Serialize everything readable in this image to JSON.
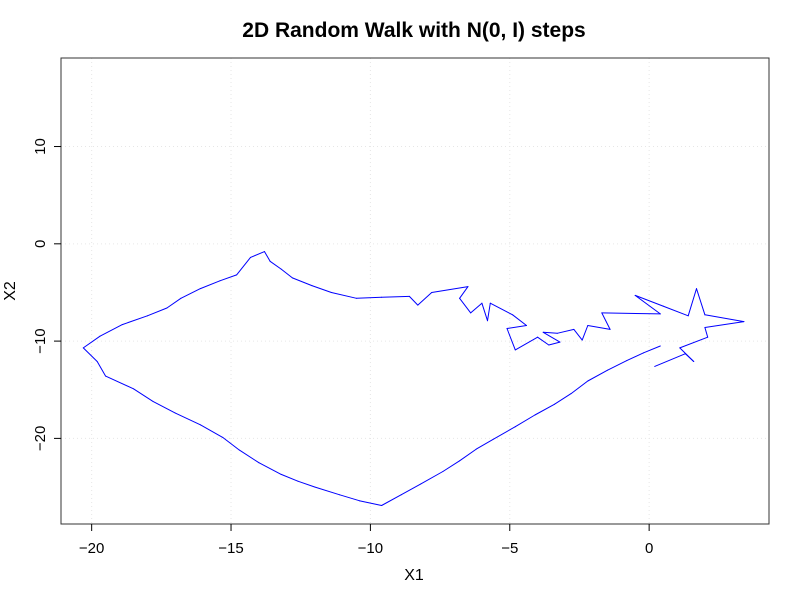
{
  "chart_data": {
    "type": "line",
    "title": "2D Random Walk with N(0, I) steps",
    "xlabel": "X1",
    "ylabel": "X2",
    "xlim": [
      -21.1,
      4.3
    ],
    "ylim": [
      -28.8,
      19.1
    ],
    "xticks": [
      -20,
      -15,
      -10,
      -5,
      0
    ],
    "yticks": [
      -20,
      -10,
      0,
      10
    ],
    "grid": true,
    "colors": {
      "line": "#0000ff",
      "grid": "#e6e6e6",
      "frame": "#333333"
    },
    "series": [
      {
        "values_xy": [
          [
            0.2,
            -12.6
          ],
          [
            1.3,
            -11.3
          ],
          [
            1.6,
            -12.1
          ],
          [
            1.1,
            -10.7
          ],
          [
            2.1,
            -9.6
          ],
          [
            2.0,
            -8.6
          ],
          [
            3.4,
            -8.0
          ],
          [
            2.0,
            -7.3
          ],
          [
            1.7,
            -4.6
          ],
          [
            1.4,
            -7.4
          ],
          [
            0.5,
            -6.4
          ],
          [
            -0.5,
            -5.3
          ],
          [
            0.4,
            -7.2
          ],
          [
            -1.7,
            -7.1
          ],
          [
            -1.4,
            -8.8
          ],
          [
            -2.2,
            -8.4
          ],
          [
            -2.4,
            -9.9
          ],
          [
            -2.7,
            -8.8
          ],
          [
            -3.3,
            -9.2
          ],
          [
            -3.8,
            -9.1
          ],
          [
            -3.2,
            -10.1
          ],
          [
            -3.6,
            -10.4
          ],
          [
            -4.0,
            -9.6
          ],
          [
            -4.8,
            -10.9
          ],
          [
            -5.1,
            -8.7
          ],
          [
            -4.4,
            -8.4
          ],
          [
            -4.9,
            -7.3
          ],
          [
            -5.7,
            -6.1
          ],
          [
            -5.8,
            -7.9
          ],
          [
            -6.0,
            -6.1
          ],
          [
            -6.4,
            -7.1
          ],
          [
            -6.8,
            -5.6
          ],
          [
            -6.5,
            -4.4
          ],
          [
            -7.8,
            -5.0
          ],
          [
            -8.3,
            -6.3
          ],
          [
            -8.6,
            -5.4
          ],
          [
            -9.6,
            -5.5
          ],
          [
            -10.5,
            -5.6
          ],
          [
            -11.4,
            -5.0
          ],
          [
            -12.1,
            -4.3
          ],
          [
            -12.8,
            -3.5
          ],
          [
            -13.2,
            -2.6
          ],
          [
            -13.6,
            -1.8
          ],
          [
            -13.8,
            -0.8
          ],
          [
            -14.3,
            -1.4
          ],
          [
            -14.8,
            -3.2
          ],
          [
            -15.4,
            -3.8
          ],
          [
            -16.1,
            -4.6
          ],
          [
            -16.8,
            -5.6
          ],
          [
            -17.3,
            -6.6
          ],
          [
            -18.0,
            -7.4
          ],
          [
            -18.9,
            -8.3
          ],
          [
            -19.7,
            -9.5
          ],
          [
            -20.3,
            -10.7
          ],
          [
            -19.8,
            -12.1
          ],
          [
            -19.5,
            -13.6
          ],
          [
            -18.5,
            -14.9
          ],
          [
            -17.8,
            -16.2
          ],
          [
            -17.0,
            -17.4
          ],
          [
            -16.1,
            -18.6
          ],
          [
            -15.3,
            -19.9
          ],
          [
            -14.7,
            -21.2
          ],
          [
            -14.0,
            -22.5
          ],
          [
            -13.2,
            -23.7
          ],
          [
            -12.6,
            -24.4
          ],
          [
            -12.0,
            -25.0
          ],
          [
            -11.1,
            -25.8
          ],
          [
            -10.4,
            -26.4
          ],
          [
            -9.6,
            -26.9
          ],
          [
            -8.9,
            -25.8
          ],
          [
            -8.2,
            -24.7
          ],
          [
            -7.4,
            -23.4
          ],
          [
            -6.8,
            -22.3
          ],
          [
            -6.2,
            -21.1
          ],
          [
            -5.6,
            -20.1
          ],
          [
            -4.8,
            -18.8
          ],
          [
            -4.1,
            -17.6
          ],
          [
            -3.4,
            -16.5
          ],
          [
            -2.8,
            -15.4
          ],
          [
            -2.2,
            -14.1
          ],
          [
            -1.5,
            -13.0
          ],
          [
            -0.8,
            -12.0
          ],
          [
            -0.2,
            -11.2
          ],
          [
            0.4,
            -10.5
          ]
        ]
      }
    ]
  }
}
